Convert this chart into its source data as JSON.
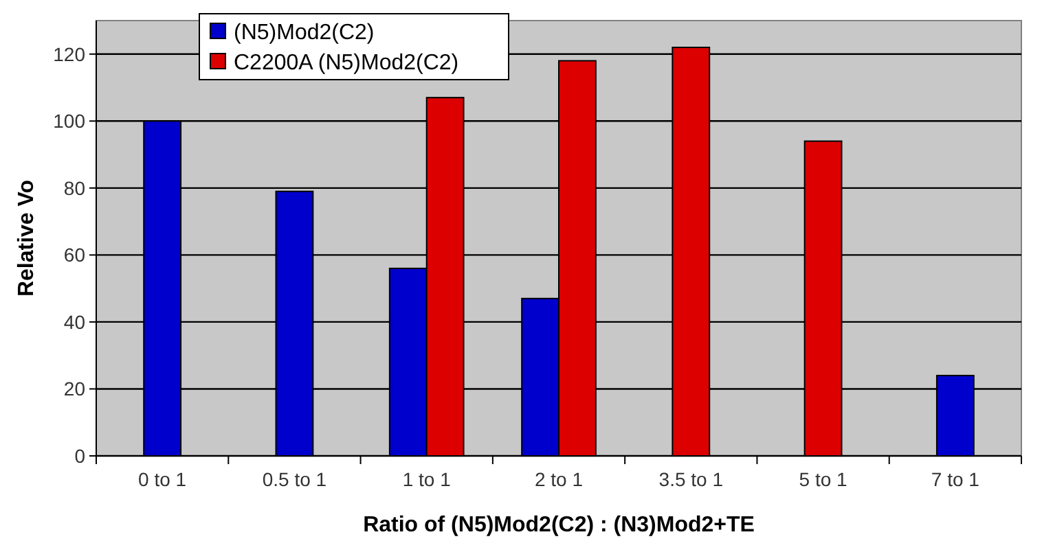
{
  "chart_data": {
    "type": "bar",
    "xlabel": "Ratio of (N5)Mod2(C2) : (N3)Mod2+TE",
    "ylabel": "Relative Vo",
    "categories": [
      "0 to 1",
      "0.5 to 1",
      "1 to 1",
      "2 to 1",
      "3.5 to 1",
      "5 to 1",
      "7 to 1"
    ],
    "series": [
      {
        "name": "(N5)Mod2(C2)",
        "color": "#0000cc",
        "values": [
          100,
          79,
          56,
          47,
          null,
          null,
          24
        ]
      },
      {
        "name": "C2200A (N5)Mod2(C2)",
        "color": "#dd0000",
        "values": [
          null,
          null,
          107,
          118,
          122,
          94,
          null
        ]
      }
    ],
    "ylim": [
      0,
      130
    ],
    "yticks": [
      0,
      20,
      40,
      60,
      80,
      100,
      120
    ],
    "grid": "y",
    "legend": "top"
  }
}
